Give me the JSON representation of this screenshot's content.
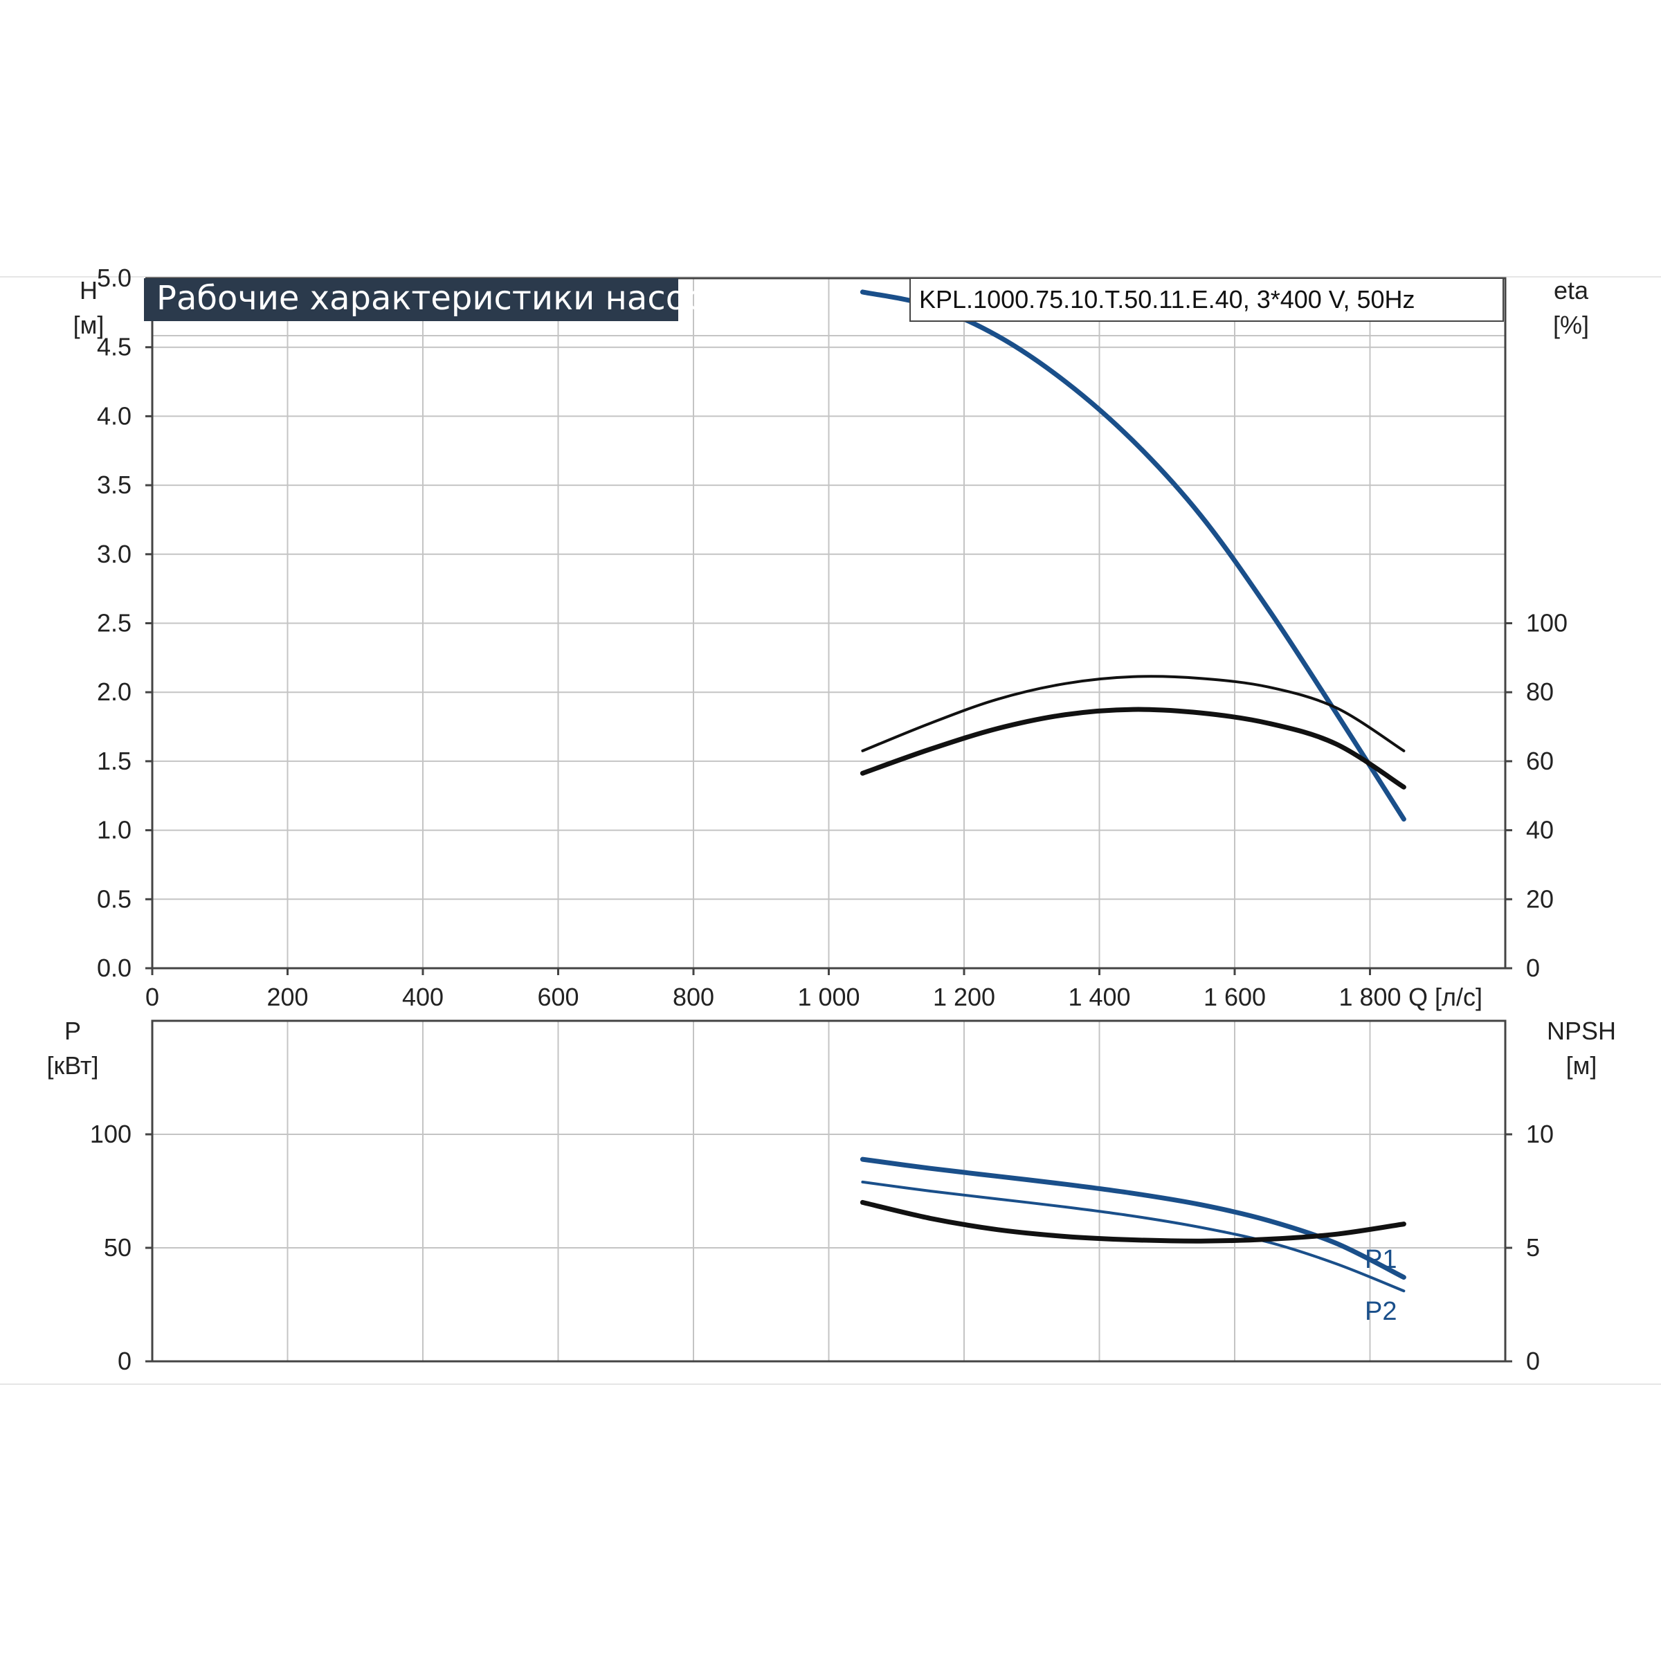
{
  "title": "Рабочие характеристики насоса",
  "model": "KPL.1000.75.10.T.50.11.E.40, 3*400 V, 50Hz",
  "colors": {
    "title_bg": "#2b3a4c",
    "blue": "#1a4f8a",
    "black": "#111111"
  },
  "chart_data": [
    {
      "type": "line",
      "x_label": "Q [л/с]",
      "xlim": [
        0,
        2000
      ],
      "x_ticks": [
        0,
        200,
        400,
        600,
        800,
        1000,
        1200,
        1400,
        1600,
        1800
      ],
      "x_tick_labels": [
        "0",
        "200",
        "400",
        "600",
        "800",
        "1 000",
        "1 200",
        "1 400",
        "1 600",
        "1 800"
      ],
      "y_label": "H",
      "y_unit": "[м]",
      "ylim": [
        0,
        5.0
      ],
      "y_ticks": [
        0.0,
        0.5,
        1.0,
        1.5,
        2.0,
        2.5,
        3.0,
        3.5,
        4.0,
        4.5,
        5.0
      ],
      "y_tick_labels": [
        "0.0",
        "0.5",
        "1.0",
        "1.5",
        "2.0",
        "2.5",
        "3.0",
        "3.5",
        "4.0",
        "4.5",
        "5.0"
      ],
      "y2_label": "eta",
      "y2_unit": "[%]",
      "y2lim": [
        0,
        200
      ],
      "y2_ticks": [
        0,
        20,
        40,
        60,
        80,
        100
      ],
      "y2_tick_labels": [
        "0",
        "20",
        "40",
        "60",
        "80",
        "100"
      ],
      "grid": true,
      "series": [
        {
          "axis": "y",
          "color": "#1a4f8a",
          "weight": "bold",
          "x": [
            1050,
            1150,
            1250,
            1350,
            1450,
            1550,
            1650,
            1750,
            1850
          ],
          "y": [
            4.9,
            4.8,
            4.58,
            4.25,
            3.82,
            3.28,
            2.6,
            1.85,
            1.08
          ]
        },
        {
          "axis": "y2",
          "color": "#111111",
          "weight": "thin",
          "x": [
            1050,
            1150,
            1250,
            1350,
            1450,
            1550,
            1650,
            1750,
            1850
          ],
          "y": [
            63,
            71,
            78,
            82.5,
            84.5,
            84,
            81.5,
            75.5,
            63
          ]
        },
        {
          "axis": "y2",
          "color": "#111111",
          "weight": "bold",
          "x": [
            1050,
            1150,
            1250,
            1350,
            1450,
            1550,
            1650,
            1750,
            1850
          ],
          "y": [
            56.5,
            63.5,
            69.5,
            73.5,
            75,
            74,
            71,
            65,
            52.5
          ]
        }
      ]
    },
    {
      "type": "line",
      "xlim": [
        0,
        2000
      ],
      "x_ticks": [
        0,
        200,
        400,
        600,
        800,
        1000,
        1200,
        1400,
        1600,
        1800
      ],
      "y_label": "P",
      "y_unit": "[кВт]",
      "ylim": [
        0,
        150
      ],
      "y_ticks": [
        0,
        50,
        100
      ],
      "y_tick_labels": [
        "0",
        "50",
        "100"
      ],
      "y2_label": "NPSH",
      "y2_unit": "[м]",
      "y2lim": [
        0,
        15
      ],
      "y2_ticks": [
        0,
        5,
        10
      ],
      "y2_tick_labels": [
        "0",
        "5",
        "10"
      ],
      "grid": true,
      "series": [
        {
          "name": "P1",
          "axis": "y",
          "color": "#1a4f8a",
          "weight": "bold",
          "x": [
            1050,
            1150,
            1250,
            1350,
            1450,
            1550,
            1650,
            1750,
            1850
          ],
          "y": [
            89,
            85,
            81.5,
            78,
            74,
            69,
            62,
            52,
            37
          ]
        },
        {
          "name": "P2",
          "axis": "y",
          "color": "#1a4f8a",
          "weight": "thin",
          "x": [
            1050,
            1150,
            1250,
            1350,
            1450,
            1550,
            1650,
            1750,
            1850
          ],
          "y": [
            79,
            75,
            71.5,
            68,
            64,
            59,
            52.5,
            43,
            31
          ]
        },
        {
          "axis": "y2",
          "color": "#111111",
          "weight": "bold",
          "x": [
            1050,
            1150,
            1250,
            1350,
            1450,
            1550,
            1650,
            1750,
            1850
          ],
          "y": [
            7.0,
            6.3,
            5.8,
            5.5,
            5.35,
            5.3,
            5.38,
            5.6,
            6.05
          ]
        }
      ]
    }
  ]
}
